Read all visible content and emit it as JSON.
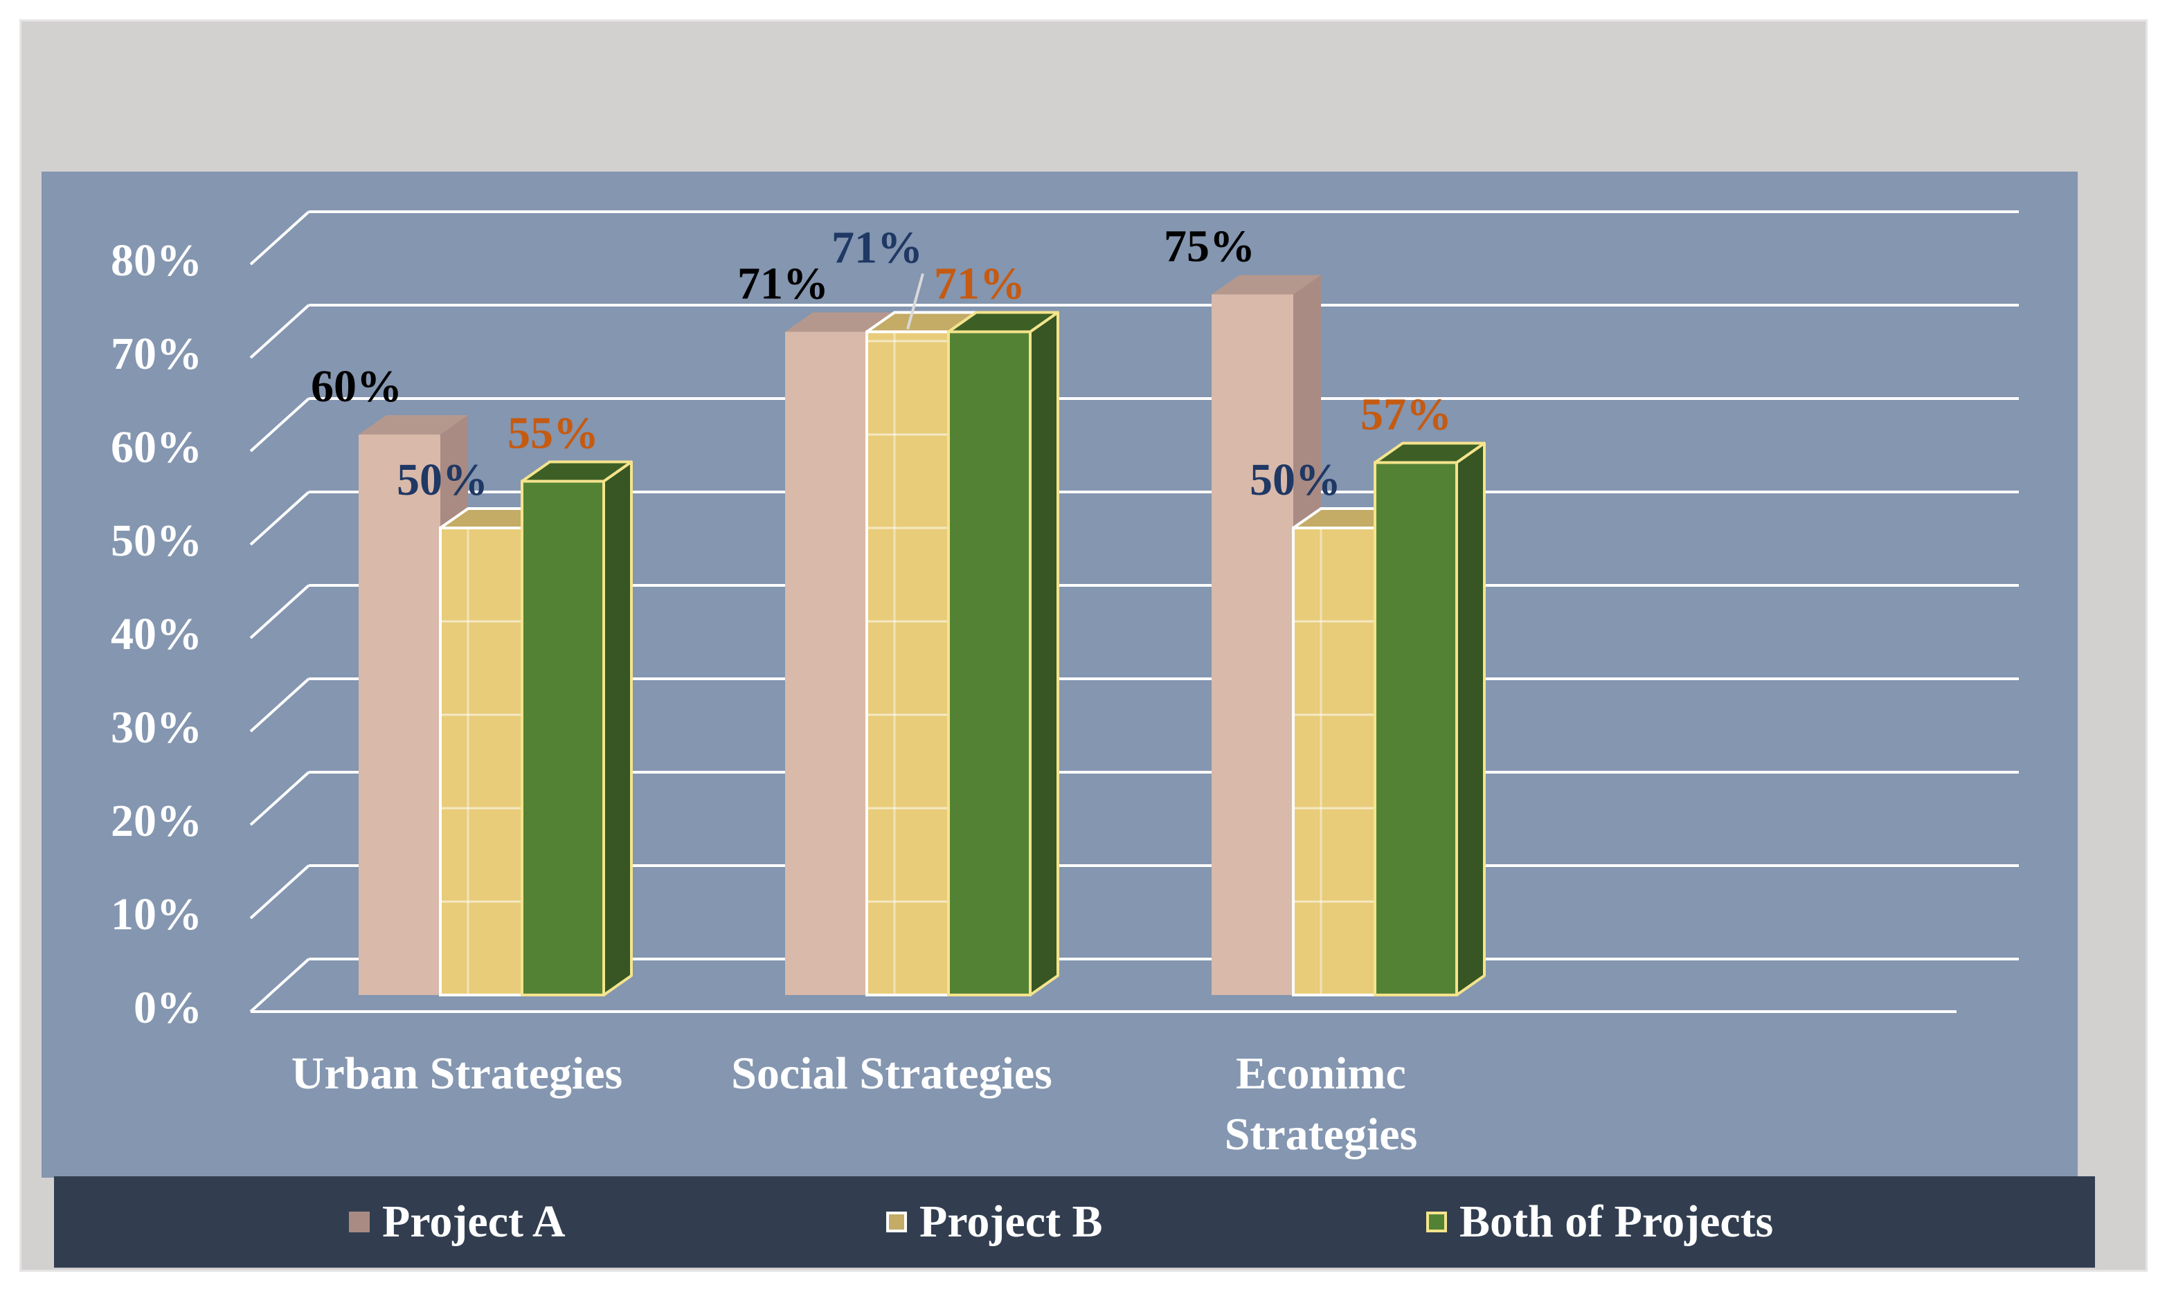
{
  "chart_data": {
    "type": "bar",
    "style": "3d-clustered-column",
    "categories": [
      "Urban Strategies",
      "Social Strategies",
      "Econimc Strategies"
    ],
    "category_lines": [
      [
        "Urban Strategies"
      ],
      [
        "Social Strategies"
      ],
      [
        "Econimc",
        "Strategies"
      ]
    ],
    "series": [
      {
        "name": "Project A",
        "values": [
          60,
          71,
          75
        ],
        "labels": [
          "60%",
          "71%",
          "75%"
        ],
        "label_color": "#000000"
      },
      {
        "name": "Project B",
        "values": [
          50,
          71,
          50
        ],
        "labels": [
          "50%",
          "71%",
          "50%"
        ],
        "label_color": "#1f3864"
      },
      {
        "name": "Both of Projects",
        "values": [
          55,
          71,
          57
        ],
        "labels": [
          "55%",
          "71%",
          "57%"
        ],
        "label_color": "#c55a11"
      }
    ],
    "y_ticks": [
      "0%",
      "10%",
      "20%",
      "30%",
      "40%",
      "50%",
      "60%",
      "70%",
      "80%"
    ],
    "ylim": [
      0,
      80
    ],
    "grid": true,
    "legend_position": "bottom",
    "colors": {
      "series_fill": [
        "#d9b9aa",
        "#e8cc7a",
        "#548235"
      ],
      "series_side": [
        "#a98b83",
        "#b7a05a",
        "#375623"
      ],
      "series_top": [
        "#b5988d",
        "#c4ab66",
        "#3d5f26"
      ],
      "series_outline": [
        "none",
        "#ffffff",
        "#f4e48c"
      ],
      "gridline": "#ffffff",
      "plot_background": "#8496b0",
      "legend_background": "#323e50",
      "axis_text": "#ffffff"
    }
  }
}
